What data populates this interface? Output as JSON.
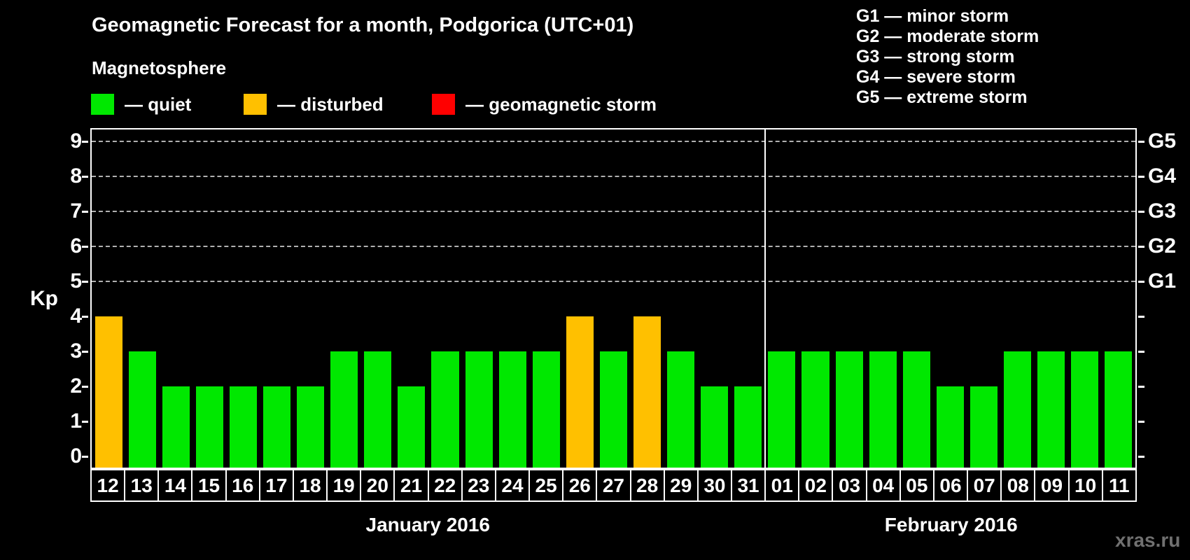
{
  "title": "Geomagnetic Forecast for a month, Podgorica (UTC+01)",
  "subtitle": "Magnetosphere",
  "status_legend": {
    "items": [
      {
        "name": "quiet",
        "label": "— quiet",
        "color": "#00e800"
      },
      {
        "name": "disturbed",
        "label": "— disturbed",
        "color": "#ffc000"
      },
      {
        "name": "storm",
        "label": "— geomagnetic storm",
        "color": "#ff0000"
      }
    ]
  },
  "g_legend": {
    "items": [
      "G1 — minor storm",
      "G2 — moderate storm",
      "G3 — strong storm",
      "G4 — severe storm",
      "G5 — extreme storm"
    ]
  },
  "watermark": "xras.ru",
  "chart_data": {
    "type": "bar",
    "title": "Geomagnetic Forecast for a month, Podgorica (UTC+01)",
    "ylabel": "Kp",
    "ylim": [
      0,
      9
    ],
    "y_ticks": [
      0,
      1,
      2,
      3,
      4,
      5,
      6,
      7,
      8,
      9
    ],
    "grid": "dashed horizontal gridlines at Kp 5-9 only",
    "gridlines_at_kp": [
      5,
      6,
      7,
      8,
      9
    ],
    "legend_position": "top",
    "colors": {
      "quiet": "#00e800",
      "disturbed": "#ffc000",
      "storm": "#ff0000"
    },
    "right_axis_labels": [
      {
        "label": "G1",
        "kp": 5
      },
      {
        "label": "G2",
        "kp": 6
      },
      {
        "label": "G3",
        "kp": 7
      },
      {
        "label": "G4",
        "kp": 8
      },
      {
        "label": "G5",
        "kp": 9
      }
    ],
    "months": [
      {
        "label": "January 2016",
        "days": [
          {
            "day": "12",
            "kp": 4,
            "status": "disturbed"
          },
          {
            "day": "13",
            "kp": 3,
            "status": "quiet"
          },
          {
            "day": "14",
            "kp": 2,
            "status": "quiet"
          },
          {
            "day": "15",
            "kp": 2,
            "status": "quiet"
          },
          {
            "day": "16",
            "kp": 2,
            "status": "quiet"
          },
          {
            "day": "17",
            "kp": 2,
            "status": "quiet"
          },
          {
            "day": "18",
            "kp": 2,
            "status": "quiet"
          },
          {
            "day": "19",
            "kp": 3,
            "status": "quiet"
          },
          {
            "day": "20",
            "kp": 3,
            "status": "quiet"
          },
          {
            "day": "21",
            "kp": 2,
            "status": "quiet"
          },
          {
            "day": "22",
            "kp": 3,
            "status": "quiet"
          },
          {
            "day": "23",
            "kp": 3,
            "status": "quiet"
          },
          {
            "day": "24",
            "kp": 3,
            "status": "quiet"
          },
          {
            "day": "25",
            "kp": 3,
            "status": "quiet"
          },
          {
            "day": "26",
            "kp": 4,
            "status": "disturbed"
          },
          {
            "day": "27",
            "kp": 3,
            "status": "quiet"
          },
          {
            "day": "28",
            "kp": 4,
            "status": "disturbed"
          },
          {
            "day": "29",
            "kp": 3,
            "status": "quiet"
          },
          {
            "day": "30",
            "kp": 2,
            "status": "quiet"
          },
          {
            "day": "31",
            "kp": 2,
            "status": "quiet"
          }
        ]
      },
      {
        "label": "February 2016",
        "days": [
          {
            "day": "01",
            "kp": 3,
            "status": "quiet"
          },
          {
            "day": "02",
            "kp": 3,
            "status": "quiet"
          },
          {
            "day": "03",
            "kp": 3,
            "status": "quiet"
          },
          {
            "day": "04",
            "kp": 3,
            "status": "quiet"
          },
          {
            "day": "05",
            "kp": 3,
            "status": "quiet"
          },
          {
            "day": "06",
            "kp": 2,
            "status": "quiet"
          },
          {
            "day": "07",
            "kp": 2,
            "status": "quiet"
          },
          {
            "day": "08",
            "kp": 3,
            "status": "quiet"
          },
          {
            "day": "09",
            "kp": 3,
            "status": "quiet"
          },
          {
            "day": "10",
            "kp": 3,
            "status": "quiet"
          },
          {
            "day": "11",
            "kp": 3,
            "status": "quiet"
          }
        ]
      }
    ]
  }
}
